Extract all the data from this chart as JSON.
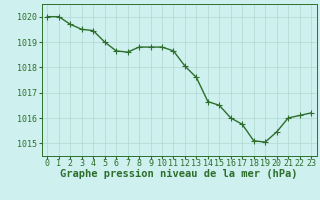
{
  "x": [
    0,
    1,
    2,
    3,
    4,
    5,
    6,
    7,
    8,
    9,
    10,
    11,
    12,
    13,
    14,
    15,
    16,
    17,
    18,
    19,
    20,
    21,
    22,
    23
  ],
  "y": [
    1020.0,
    1020.0,
    1019.7,
    1019.5,
    1019.45,
    1019.0,
    1018.65,
    1018.6,
    1018.8,
    1018.8,
    1018.8,
    1018.65,
    1018.05,
    1017.6,
    1016.65,
    1016.5,
    1016.0,
    1015.75,
    1015.1,
    1015.05,
    1015.45,
    1016.0,
    1016.1,
    1016.2
  ],
  "line_color": "#2d6e2d",
  "marker": "+",
  "marker_size": 4,
  "marker_color": "#2d6e2d",
  "bg_color": "#cef0ee",
  "grid_color": "#b0d8d0",
  "xlabel": "Graphe pression niveau de la mer (hPa)",
  "xlabel_color": "#2d6e2d",
  "tick_color": "#2d6e2d",
  "ylim": [
    1014.5,
    1020.5
  ],
  "yticks": [
    1015,
    1016,
    1017,
    1018,
    1019,
    1020
  ],
  "xticks": [
    0,
    1,
    2,
    3,
    4,
    5,
    6,
    7,
    8,
    9,
    10,
    11,
    12,
    13,
    14,
    15,
    16,
    17,
    18,
    19,
    20,
    21,
    22,
    23
  ],
  "xlabel_fontsize": 7.5,
  "tick_fontsize": 6,
  "linewidth": 1.0
}
